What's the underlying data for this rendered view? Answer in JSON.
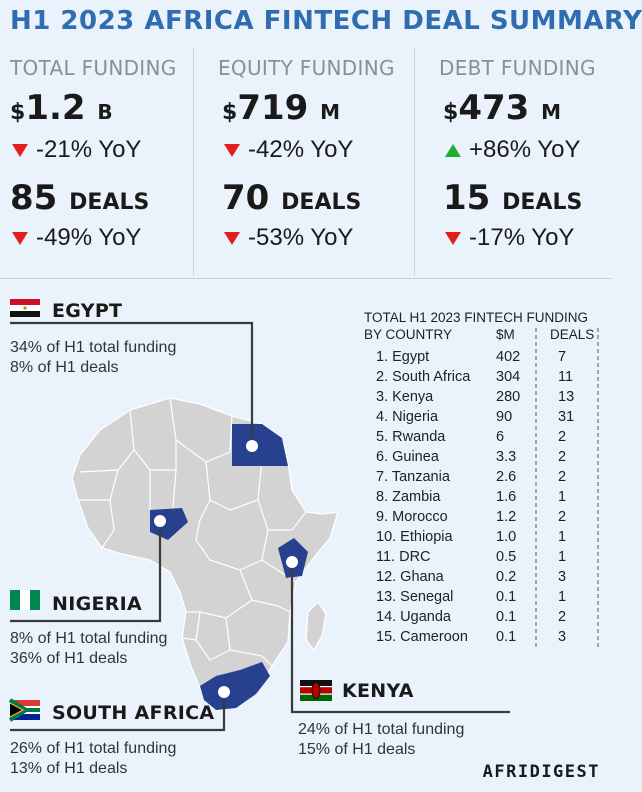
{
  "title": "H1 2023 AFRICA FINTECH DEAL SUMMARY",
  "summary": [
    {
      "header": "TOTAL FUNDING",
      "currency": "$",
      "amount": "1.2",
      "unit": "B",
      "amount_yoy": "-21% YoY",
      "amount_trend": "down",
      "deals": "85",
      "deals_label": "DEALS",
      "deals_yoy": "-49% YoY",
      "deals_trend": "down"
    },
    {
      "header": "EQUITY FUNDING",
      "currency": "$",
      "amount": "719",
      "unit": "M",
      "amount_yoy": "-42% YoY",
      "amount_trend": "down",
      "deals": "70",
      "deals_label": "DEALS",
      "deals_yoy": "-53% YoY",
      "deals_trend": "down"
    },
    {
      "header": "DEBT FUNDING",
      "currency": "$",
      "amount": "473",
      "unit": "M",
      "amount_yoy": "+86% YoY",
      "amount_trend": "up",
      "deals": "15",
      "deals_label": "DEALS",
      "deals_yoy": "-17% YoY",
      "deals_trend": "down"
    }
  ],
  "callouts": {
    "egypt": {
      "name": "EGYPT",
      "line1": "34% of H1 total funding",
      "line2": "8% of H1 deals"
    },
    "nigeria": {
      "name": "NIGERIA",
      "line1": "8% of H1 total funding",
      "line2": "36% of H1 deals"
    },
    "south_africa": {
      "name": "SOUTH AFRICA",
      "line1": "26% of H1 total funding",
      "line2": "13% of H1 deals"
    },
    "kenya": {
      "name": "KENYA",
      "line1": "24% of H1 total funding",
      "line2": "15% of H1 deals"
    }
  },
  "colors": {
    "title": "#2f6cb0",
    "highlight": "#27418f",
    "map_fill": "#d3d3d3",
    "down": "#e11d1d",
    "up": "#1fae2f",
    "background": "#eaf3fb"
  },
  "chart_data": {
    "type": "table",
    "title": "TOTAL H1 2023 FINTECH FUNDING",
    "subtitle": "BY COUNTRY",
    "columns": [
      "$M",
      "DEALS"
    ],
    "rows": [
      {
        "rank": "1.",
        "country": "Egypt",
        "funding": "402",
        "deals": "7"
      },
      {
        "rank": "2.",
        "country": "South Africa",
        "funding": "304",
        "deals": "11"
      },
      {
        "rank": "3.",
        "country": "Kenya",
        "funding": "280",
        "deals": "13"
      },
      {
        "rank": "4.",
        "country": "Nigeria",
        "funding": "90",
        "deals": "31"
      },
      {
        "rank": "5.",
        "country": "Rwanda",
        "funding": "6",
        "deals": "2"
      },
      {
        "rank": "6.",
        "country": "Guinea",
        "funding": "3.3",
        "deals": "2"
      },
      {
        "rank": "7.",
        "country": "Tanzania",
        "funding": "2.6",
        "deals": "2"
      },
      {
        "rank": "8.",
        "country": "Zambia",
        "funding": "1.6",
        "deals": "1"
      },
      {
        "rank": "9.",
        "country": "Morocco",
        "funding": "1.2",
        "deals": "2"
      },
      {
        "rank": "10.",
        "country": "Ethiopia",
        "funding": "1.0",
        "deals": "1"
      },
      {
        "rank": "11.",
        "country": "DRC",
        "funding": "0.5",
        "deals": "1"
      },
      {
        "rank": "12.",
        "country": "Ghana",
        "funding": "0.2",
        "deals": "3"
      },
      {
        "rank": "13.",
        "country": "Senegal",
        "funding": "0.1",
        "deals": "1"
      },
      {
        "rank": "14.",
        "country": "Uganda",
        "funding": "0.1",
        "deals": "2"
      },
      {
        "rank": "15.",
        "country": "Cameroon",
        "funding": "0.1",
        "deals": "3"
      }
    ]
  },
  "brand": "AFRIDIGEST"
}
